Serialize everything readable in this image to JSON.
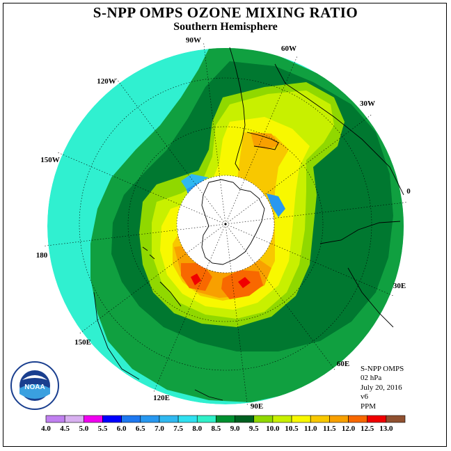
{
  "title": "S-NPP OMPS OZONE MIXING RATIO",
  "subtitle": "Southern Hemisphere",
  "info": {
    "instrument": "S-NPP OMPS",
    "level": "02 hPa",
    "date": "July 20, 2016",
    "version": "v6",
    "units": "PPM"
  },
  "logo": {
    "name": "noaa-logo",
    "text": "NOAA",
    "ring_text": "NATIONAL OCEANIC AND ATMOSPHERIC ADMINISTRATION · U.S. DEPARTMENT OF COMMERCE"
  },
  "longitude_labels": [
    "90W",
    "60W",
    "30W",
    "0",
    "30E",
    "60E",
    "90E",
    "120E",
    "150E",
    "180",
    "150W",
    "120W"
  ],
  "colorbar": {
    "labels": [
      "4.0",
      "4.5",
      "5.0",
      "5.5",
      "6.0",
      "6.5",
      "7.0",
      "7.5",
      "8.0",
      "8.5",
      "9.0",
      "9.5",
      "10.0",
      "10.5",
      "11.0",
      "11.5",
      "12.0",
      "12.5",
      "13.0"
    ],
    "colors": [
      "#c080f0",
      "#d8b0f0",
      "#f000f0",
      "#0000ff",
      "#1e78f0",
      "#2898f0",
      "#30b8f0",
      "#30e0f0",
      "#30f0c8",
      "#009030",
      "#006020",
      "#90d800",
      "#c8f000",
      "#f8f800",
      "#f8c800",
      "#f8a000",
      "#f86800",
      "#f00000",
      "#905030"
    ]
  },
  "map": {
    "projection": "south polar stereographic",
    "background_color": "#30f0d0",
    "no_data_color": "#ffffff"
  }
}
